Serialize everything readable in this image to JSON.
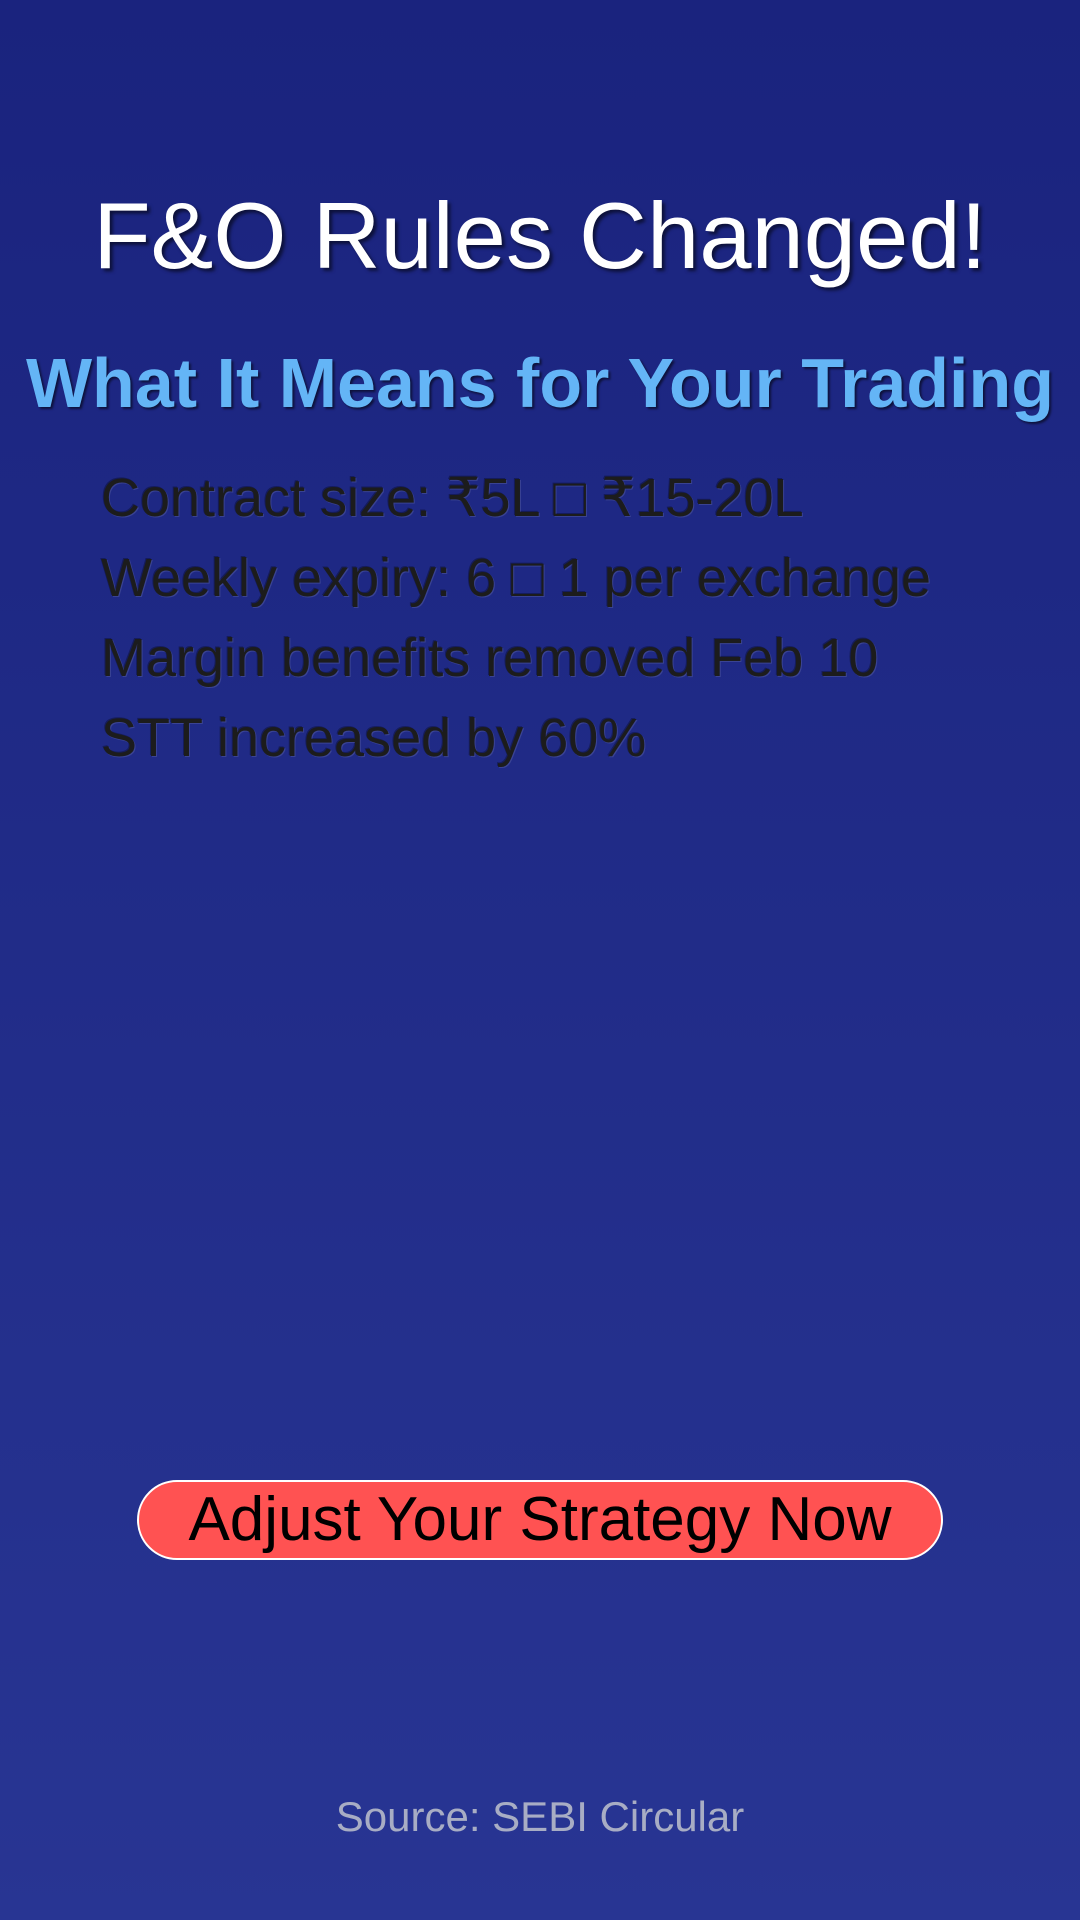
{
  "header": {
    "title": "F&O Rules Changed!",
    "subtitle": "What It Means for Your Trading"
  },
  "changes": [
    "Contract size: ₹5L □ ₹15-20L",
    "Weekly expiry: 6 □ 1 per exchange",
    "Margin benefits removed Feb 10",
    "STT increased by 60%"
  ],
  "cta": {
    "label": "Adjust Your Strategy Now"
  },
  "footer": {
    "source": "Source: SEBI Circular"
  },
  "colors": {
    "background_top": "#1a237e",
    "background_bottom": "#283593",
    "title": "#ffffff",
    "subtitle": "#64b5f6",
    "cta_background": "#ff5252",
    "source_text": "#a8adc4"
  }
}
